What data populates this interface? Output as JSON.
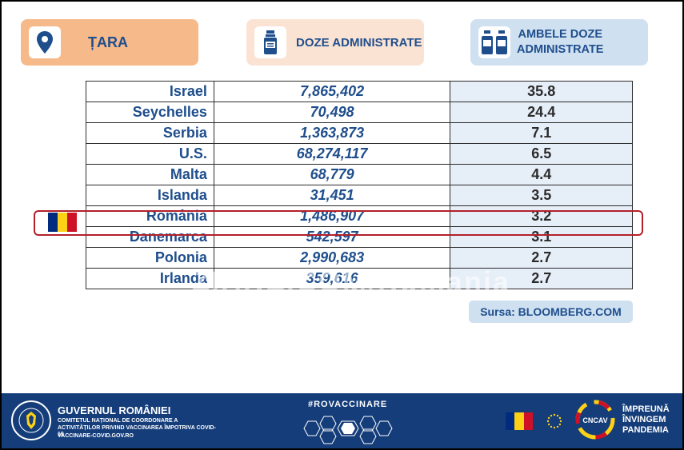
{
  "headers": {
    "country_label": "ȚARA",
    "country_icon": "location-pin-icon",
    "doses_label": "DOZE ADMINISTRATE",
    "doses_icon": "vaccine-vial-icon",
    "both_doses_line1": "AMBELE DOZE",
    "both_doses_line2": "ADMINISTRATE",
    "both_doses_icon": "two-vials-icon"
  },
  "table": {
    "columns": [
      "Țara",
      "Doze administrate",
      "Ambele doze administrate"
    ],
    "rows": [
      {
        "country": "Israel",
        "doses": "7,865,402",
        "both": "35.8"
      },
      {
        "country": "Seychelles",
        "doses": "70,498",
        "both": "24.4"
      },
      {
        "country": "Serbia",
        "doses": "1,363,873",
        "both": "7.1"
      },
      {
        "country": "U.S.",
        "doses": "68,274,117",
        "both": "6.5"
      },
      {
        "country": "Malta",
        "doses": "68,779",
        "both": "4.4"
      },
      {
        "country": "Islanda",
        "doses": "31,451",
        "both": "3.5"
      },
      {
        "country": "România",
        "doses": "1,486,907",
        "both": "3.2"
      },
      {
        "country": "Danemarca",
        "doses": "542,597",
        "both": "3.1"
      },
      {
        "country": "Polonia",
        "doses": "2,990,683",
        "both": "2.7"
      },
      {
        "country": "Irlanda",
        "doses": "359,616",
        "both": "2.7"
      }
    ],
    "highlighted_row": "România"
  },
  "watermark": "ZIARE.COM/Romania",
  "source": "Sursa: BLOOMBERG.COM",
  "footer": {
    "gov_title": "GUVERNUL ROMÂNIEI",
    "gov_sub": "COMITETUL NAȚIONAL DE COORDONARE A ACTIVITĂȚILOR PRIVIND VACCINAREA ÎMPOTRIVA COVID-19",
    "gov_url": "VACCINARE-COVID.GOV.RO",
    "hashtag": "#ROVACCINARE",
    "cncav": "CNCAV",
    "slogan_line1": "ÎMPREUNĂ",
    "slogan_line2": "ÎNVINGEM",
    "slogan_line3": "PANDEMIA"
  },
  "colors": {
    "brand_blue": "#1f4e8c",
    "footer_blue": "#143d7a",
    "highlight_red": "#b3202a",
    "flag_blue": "#002b7f",
    "flag_yellow": "#fcd116",
    "flag_red": "#ce1126"
  }
}
